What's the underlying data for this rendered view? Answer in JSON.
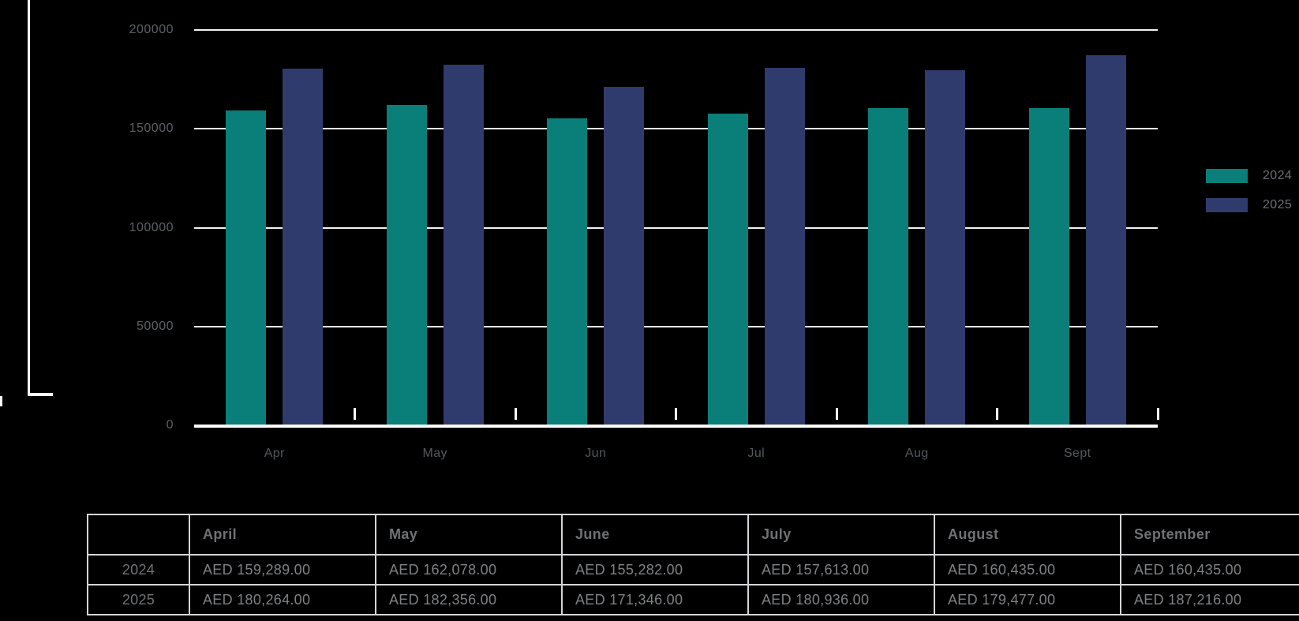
{
  "chart_data": {
    "type": "bar",
    "title": "",
    "xlabel": "",
    "ylabel": "",
    "categories": [
      "Apr",
      "May",
      "Jun",
      "Jul",
      "Aug",
      "Sept"
    ],
    "series": [
      {
        "name": "2024",
        "color": "#0A7E79",
        "values": [
          159289,
          162078,
          155282,
          157613,
          160435,
          160435
        ]
      },
      {
        "name": "2025",
        "color": "#2F3B6C",
        "values": [
          180264,
          182356,
          171346,
          180936,
          179477,
          187216
        ]
      }
    ],
    "ylim": [
      0,
      200000
    ],
    "yticks": [
      0,
      50000,
      100000,
      150000,
      200000
    ],
    "ytick_labels": [
      "0",
      "50000",
      "100000",
      "150000",
      "200000"
    ],
    "grid": true,
    "legend_position": "right"
  },
  "legend": {
    "items": [
      {
        "label": "2024",
        "color": "#0A7E79"
      },
      {
        "label": "2025",
        "color": "#2F3B6C"
      }
    ]
  },
  "table": {
    "header": [
      "",
      "April",
      "May",
      "June",
      "July",
      "August",
      "September"
    ],
    "rows": [
      {
        "label": "2024",
        "values": [
          "AED 159,289.00",
          "AED 162,078.00",
          "AED 155,282.00",
          "AED 157,613.00",
          "AED 160,435.00",
          "AED 160,435.00"
        ]
      },
      {
        "label": "2025",
        "values": [
          "AED 180,264.00",
          "AED 182,356.00",
          "AED 171,346.00",
          "AED 180,936.00",
          "AED 179,477.00",
          "AED 187,216.00"
        ]
      }
    ]
  },
  "colors": {
    "background": "#000000",
    "series_2024": "#0A7E79",
    "series_2025": "#2F3B6C",
    "gridline": "#F1F1F3",
    "axis": "#FFFFFF",
    "axis_text": "#5D6066",
    "table_border": "#D4D5D7",
    "table_text": "#7F8184",
    "table_header_text": "#6F7174"
  }
}
